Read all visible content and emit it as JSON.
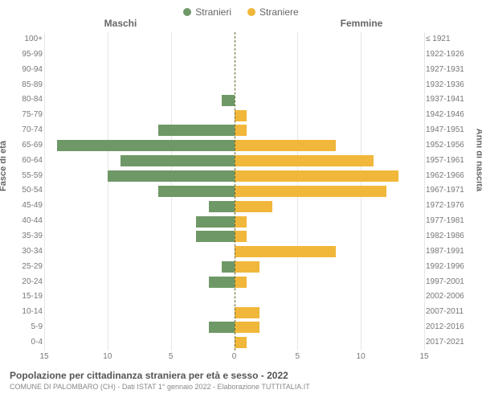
{
  "legend": {
    "male": {
      "label": "Stranieri",
      "color": "#6f9867"
    },
    "female": {
      "label": "Straniere",
      "color": "#f1b73a"
    }
  },
  "headers": {
    "male": "Maschi",
    "female": "Femmine"
  },
  "axis_labels": {
    "left": "Fasce di età",
    "right": "Anni di nascita"
  },
  "chart": {
    "type": "population-pyramid",
    "xlim": 15,
    "xticks": [
      15,
      10,
      5,
      0,
      5,
      10,
      15
    ],
    "bar_color_male": "#6f9867",
    "bar_color_female": "#f1b73a",
    "center_line_color": "#666633",
    "grid_color": "#e6e6e6",
    "background_color": "#ffffff",
    "rows": [
      {
        "age": "100+",
        "birth": "≤ 1921",
        "m": 0,
        "f": 0
      },
      {
        "age": "95-99",
        "birth": "1922-1926",
        "m": 0,
        "f": 0
      },
      {
        "age": "90-94",
        "birth": "1927-1931",
        "m": 0,
        "f": 0
      },
      {
        "age": "85-89",
        "birth": "1932-1936",
        "m": 0,
        "f": 0
      },
      {
        "age": "80-84",
        "birth": "1937-1941",
        "m": 1,
        "f": 0
      },
      {
        "age": "75-79",
        "birth": "1942-1946",
        "m": 0,
        "f": 1
      },
      {
        "age": "70-74",
        "birth": "1947-1951",
        "m": 6,
        "f": 1
      },
      {
        "age": "65-69",
        "birth": "1952-1956",
        "m": 14,
        "f": 8
      },
      {
        "age": "60-64",
        "birth": "1957-1961",
        "m": 9,
        "f": 11
      },
      {
        "age": "55-59",
        "birth": "1962-1966",
        "m": 10,
        "f": 13
      },
      {
        "age": "50-54",
        "birth": "1967-1971",
        "m": 6,
        "f": 12
      },
      {
        "age": "45-49",
        "birth": "1972-1976",
        "m": 2,
        "f": 3
      },
      {
        "age": "40-44",
        "birth": "1977-1981",
        "m": 3,
        "f": 1
      },
      {
        "age": "35-39",
        "birth": "1982-1986",
        "m": 3,
        "f": 1
      },
      {
        "age": "30-34",
        "birth": "1987-1991",
        "m": 0,
        "f": 8
      },
      {
        "age": "25-29",
        "birth": "1992-1996",
        "m": 1,
        "f": 2
      },
      {
        "age": "20-24",
        "birth": "1997-2001",
        "m": 2,
        "f": 1
      },
      {
        "age": "15-19",
        "birth": "2002-2006",
        "m": 0,
        "f": 0
      },
      {
        "age": "10-14",
        "birth": "2007-2011",
        "m": 0,
        "f": 2
      },
      {
        "age": "5-9",
        "birth": "2012-2016",
        "m": 2,
        "f": 2
      },
      {
        "age": "0-4",
        "birth": "2017-2021",
        "m": 0,
        "f": 1
      }
    ]
  },
  "footer": {
    "title": "Popolazione per cittadinanza straniera per età e sesso - 2022",
    "subtitle": "COMUNE DI PALOMBARO (CH) - Dati ISTAT 1° gennaio 2022 - Elaborazione TUTTITALIA.IT"
  }
}
